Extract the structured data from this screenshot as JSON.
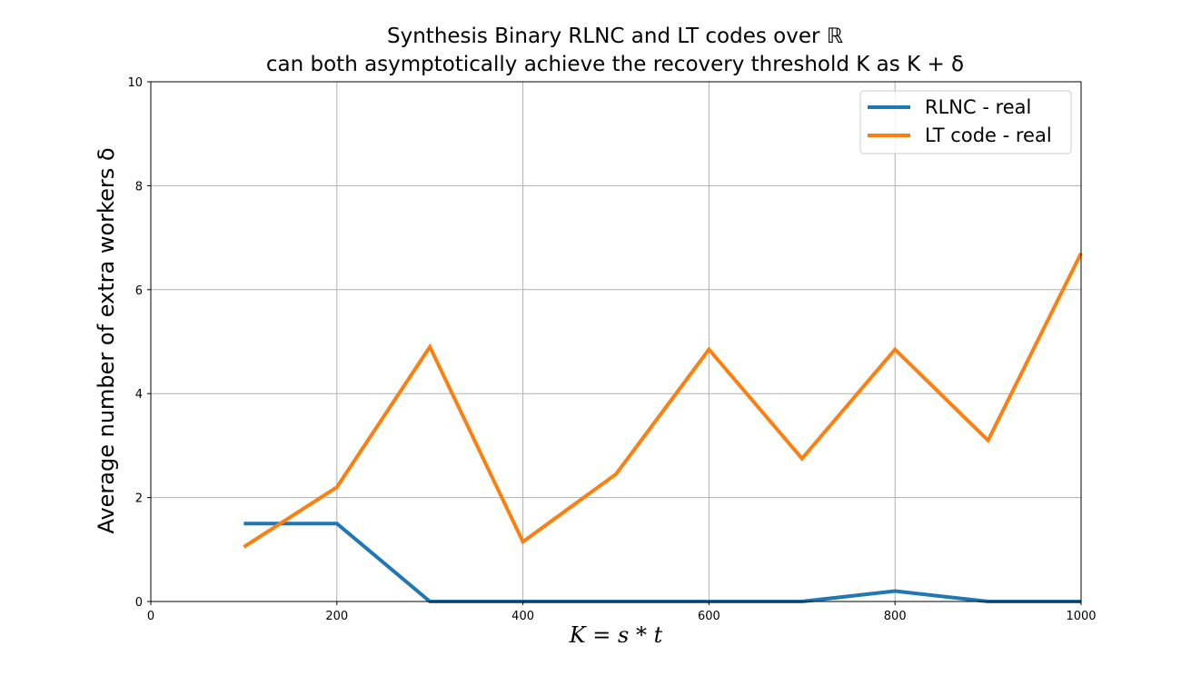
{
  "chart_data": {
    "type": "line",
    "title_line1": "Synthesis Binary RLNC and LT codes over ℝ",
    "title_line2": "can both asymptotically achieve the recovery threshold K as K + δ",
    "xlabel": "K = s * t",
    "ylabel": "Average number of extra workers δ",
    "xlim": [
      0,
      1000
    ],
    "ylim": [
      0,
      10
    ],
    "xticks": [
      0,
      200,
      400,
      600,
      800,
      1000
    ],
    "yticks": [
      0,
      2,
      4,
      6,
      8,
      10
    ],
    "grid": true,
    "legend_position": "top-right",
    "x": [
      100,
      200,
      300,
      400,
      500,
      600,
      700,
      800,
      900,
      1000
    ],
    "series": [
      {
        "name": "RLNC - real",
        "color": "#1f77b4",
        "values": [
          1.5,
          1.5,
          0.0,
          0.0,
          0.0,
          0.0,
          0.0,
          0.2,
          0.0,
          0.0
        ]
      },
      {
        "name": "LT code - real",
        "color": "#ff7f0e",
        "values": [
          1.05,
          2.2,
          4.9,
          1.15,
          2.45,
          4.85,
          2.75,
          4.85,
          3.1,
          6.7
        ]
      }
    ]
  }
}
